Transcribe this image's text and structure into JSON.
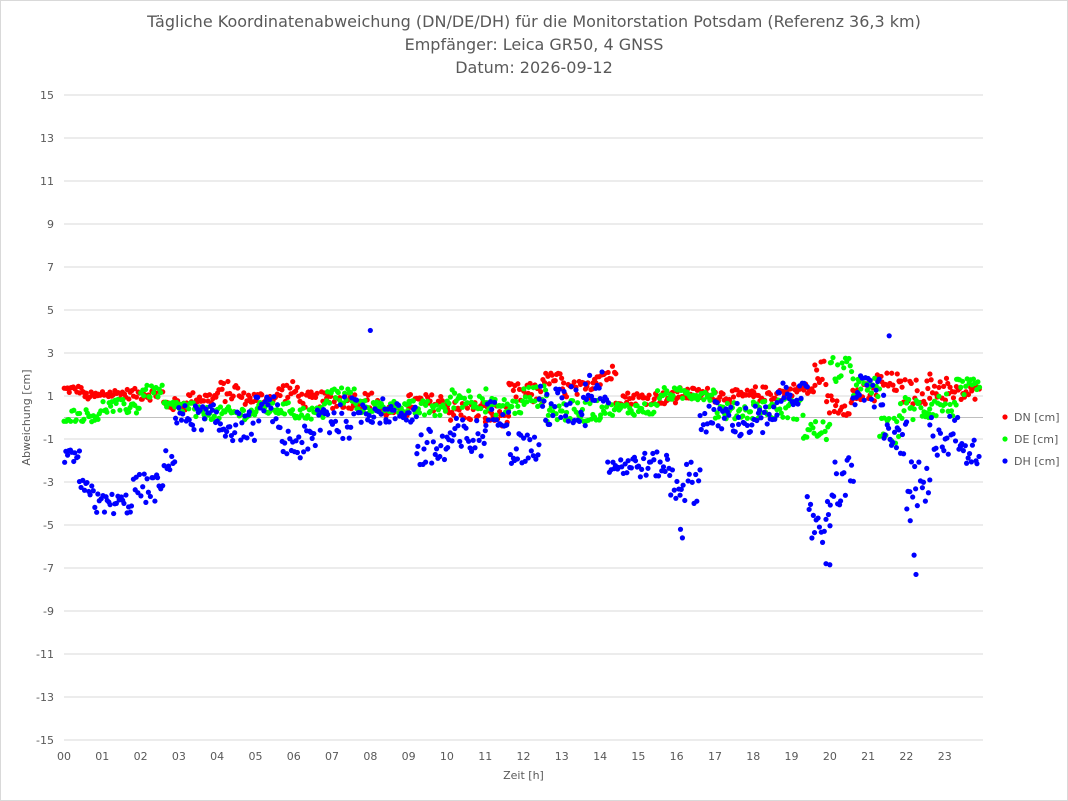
{
  "chart_data": {
    "type": "scatter",
    "title_lines": [
      "Tägliche Koordinatenabweichung (DN/DE/DH) für die Monitorstation Potsdam (Referenz 36,3 km)",
      "Empfänger: Leica GR50, 4 GNSS",
      "Datum: 2026-09-12"
    ],
    "xlabel": "Zeit [h]",
    "ylabel": "Abweichung [cm]",
    "xlim": [
      0,
      24
    ],
    "ylim": [
      -15,
      15
    ],
    "x_tick_labels": [
      "00",
      "01",
      "02",
      "03",
      "04",
      "05",
      "06",
      "07",
      "08",
      "09",
      "10",
      "11",
      "12",
      "13",
      "14",
      "15",
      "16",
      "17",
      "18",
      "19",
      "20",
      "21",
      "22",
      "23"
    ],
    "y_tick_labels": [
      "15",
      "13",
      "11",
      "9",
      "7",
      "5",
      "3",
      "1",
      "-1",
      "-3",
      "-5",
      "-7",
      "-9",
      "-11",
      "-13",
      "-15"
    ],
    "grid": "horizontal",
    "legend_position": "right",
    "series": [
      {
        "name": "DN [cm]",
        "color": "#ff0000",
        "segments": [
          {
            "x0": 0.0,
            "x1": 0.5,
            "base": 1.3,
            "jitter": 0.2
          },
          {
            "x0": 0.5,
            "x1": 1.0,
            "base": 1.0,
            "jitter": 0.2
          },
          {
            "x0": 1.0,
            "x1": 2.0,
            "base": 1.1,
            "jitter": 0.25
          },
          {
            "x0": 2.0,
            "x1": 2.6,
            "base": 1.1,
            "jitter": 0.3
          },
          {
            "x0": 2.6,
            "x1": 3.2,
            "base": 0.6,
            "jitter": 0.3
          },
          {
            "x0": 3.2,
            "x1": 4.0,
            "base": 0.9,
            "jitter": 0.3
          },
          {
            "x0": 4.0,
            "x1": 4.6,
            "base": 1.2,
            "jitter": 0.5
          },
          {
            "x0": 4.6,
            "x1": 5.6,
            "base": 0.9,
            "jitter": 0.3
          },
          {
            "x0": 5.6,
            "x1": 6.2,
            "base": 1.2,
            "jitter": 0.5
          },
          {
            "x0": 6.2,
            "x1": 7.3,
            "base": 0.8,
            "jitter": 0.4
          },
          {
            "x0": 7.3,
            "x1": 8.2,
            "base": 0.8,
            "jitter": 0.4
          },
          {
            "x0": 8.2,
            "x1": 9.0,
            "base": 0.3,
            "jitter": 0.3
          },
          {
            "x0": 9.0,
            "x1": 10.0,
            "base": 0.7,
            "jitter": 0.4
          },
          {
            "x0": 10.0,
            "x1": 11.0,
            "base": 0.3,
            "jitter": 0.5
          },
          {
            "x0": 11.0,
            "x1": 11.6,
            "base": 0.1,
            "jitter": 0.5
          },
          {
            "x0": 11.6,
            "x1": 12.5,
            "base": 1.1,
            "jitter": 0.5
          },
          {
            "x0": 12.5,
            "x1": 13.0,
            "base": 1.8,
            "jitter": 0.3
          },
          {
            "x0": 13.0,
            "x1": 13.8,
            "base": 1.3,
            "jitter": 0.4
          },
          {
            "x0": 13.8,
            "x1": 14.4,
            "base": 2.0,
            "jitter": 0.5
          },
          {
            "x0": 14.4,
            "x1": 16.0,
            "base": 0.9,
            "jitter": 0.3
          },
          {
            "x0": 16.0,
            "x1": 17.0,
            "base": 1.1,
            "jitter": 0.3
          },
          {
            "x0": 17.0,
            "x1": 18.0,
            "base": 1.0,
            "jitter": 0.3
          },
          {
            "x0": 18.0,
            "x1": 19.0,
            "base": 1.1,
            "jitter": 0.35
          },
          {
            "x0": 19.0,
            "x1": 19.6,
            "base": 1.3,
            "jitter": 0.3
          },
          {
            "x0": 19.6,
            "x1": 19.9,
            "base": 2.1,
            "jitter": 0.6
          },
          {
            "x0": 19.9,
            "x1": 20.6,
            "base": 0.6,
            "jitter": 0.5
          },
          {
            "x0": 20.6,
            "x1": 21.2,
            "base": 1.1,
            "jitter": 0.5
          },
          {
            "x0": 21.2,
            "x1": 21.8,
            "base": 1.6,
            "jitter": 0.5
          },
          {
            "x0": 21.8,
            "x1": 22.6,
            "base": 1.2,
            "jitter": 0.6
          },
          {
            "x0": 22.6,
            "x1": 23.1,
            "base": 1.4,
            "jitter": 0.7
          },
          {
            "x0": 23.1,
            "x1": 23.9,
            "base": 1.1,
            "jitter": 0.4
          }
        ]
      },
      {
        "name": "DE [cm]",
        "color": "#00ff00",
        "segments": [
          {
            "x0": 0.0,
            "x1": 1.0,
            "base": 0.1,
            "jitter": 0.3
          },
          {
            "x0": 1.0,
            "x1": 2.0,
            "base": 0.5,
            "jitter": 0.35
          },
          {
            "x0": 2.0,
            "x1": 2.6,
            "base": 1.2,
            "jitter": 0.3
          },
          {
            "x0": 2.6,
            "x1": 3.4,
            "base": 0.5,
            "jitter": 0.3
          },
          {
            "x0": 3.4,
            "x1": 5.0,
            "base": 0.2,
            "jitter": 0.3
          },
          {
            "x0": 5.0,
            "x1": 6.0,
            "base": 0.4,
            "jitter": 0.3
          },
          {
            "x0": 6.0,
            "x1": 6.8,
            "base": 0.2,
            "jitter": 0.3
          },
          {
            "x0": 6.8,
            "x1": 7.6,
            "base": 1.0,
            "jitter": 0.5
          },
          {
            "x0": 7.6,
            "x1": 9.0,
            "base": 0.5,
            "jitter": 0.3
          },
          {
            "x0": 9.0,
            "x1": 10.0,
            "base": 0.4,
            "jitter": 0.4
          },
          {
            "x0": 10.0,
            "x1": 11.0,
            "base": 0.9,
            "jitter": 0.5
          },
          {
            "x0": 11.0,
            "x1": 12.0,
            "base": 0.5,
            "jitter": 0.4
          },
          {
            "x0": 12.0,
            "x1": 12.6,
            "base": 1.0,
            "jitter": 0.5
          },
          {
            "x0": 12.6,
            "x1": 14.0,
            "base": 0.3,
            "jitter": 0.5
          },
          {
            "x0": 14.0,
            "x1": 15.5,
            "base": 0.4,
            "jitter": 0.3
          },
          {
            "x0": 15.5,
            "x1": 17.0,
            "base": 1.1,
            "jitter": 0.3
          },
          {
            "x0": 17.0,
            "x1": 18.0,
            "base": 0.3,
            "jitter": 0.4
          },
          {
            "x0": 18.0,
            "x1": 19.3,
            "base": 0.4,
            "jitter": 0.5
          },
          {
            "x0": 19.3,
            "x1": 20.0,
            "base": -0.6,
            "jitter": 0.5
          },
          {
            "x0": 20.0,
            "x1": 20.6,
            "base": 2.2,
            "jitter": 0.6
          },
          {
            "x0": 20.6,
            "x1": 21.3,
            "base": 1.4,
            "jitter": 0.5
          },
          {
            "x0": 21.3,
            "x1": 21.8,
            "base": -0.6,
            "jitter": 0.6
          },
          {
            "x0": 21.8,
            "x1": 22.6,
            "base": 0.4,
            "jitter": 0.6
          },
          {
            "x0": 22.6,
            "x1": 23.3,
            "base": 0.6,
            "jitter": 0.6
          },
          {
            "x0": 23.3,
            "x1": 23.9,
            "base": 1.3,
            "jitter": 0.5
          }
        ]
      },
      {
        "name": "DH [cm]",
        "color": "#0000ff",
        "segments": [
          {
            "x0": 0.0,
            "x1": 0.4,
            "base": -1.8,
            "jitter": 0.3
          },
          {
            "x0": 0.4,
            "x1": 0.8,
            "base": -3.3,
            "jitter": 0.4
          },
          {
            "x0": 0.8,
            "x1": 1.8,
            "base": -4.0,
            "jitter": 0.5
          },
          {
            "x0": 1.8,
            "x1": 2.6,
            "base": -3.3,
            "jitter": 0.7
          },
          {
            "x0": 2.6,
            "x1": 2.9,
            "base": -2.0,
            "jitter": 0.5
          },
          {
            "x0": 2.9,
            "x1": 4.0,
            "base": 0.0,
            "jitter": 0.6
          },
          {
            "x0": 4.0,
            "x1": 5.0,
            "base": -0.4,
            "jitter": 0.7
          },
          {
            "x0": 5.0,
            "x1": 5.6,
            "base": 0.4,
            "jitter": 0.6
          },
          {
            "x0": 5.6,
            "x1": 6.6,
            "base": -1.2,
            "jitter": 0.8
          },
          {
            "x0": 6.6,
            "x1": 7.6,
            "base": 0.0,
            "jitter": 1.0
          },
          {
            "x0": 7.6,
            "x1": 8.4,
            "base": 0.3,
            "jitter": 0.6
          },
          {
            "x0": 8.4,
            "x1": 9.2,
            "base": 0.2,
            "jitter": 0.5
          },
          {
            "x0": 9.2,
            "x1": 10.0,
            "base": -1.5,
            "jitter": 1.0
          },
          {
            "x0": 10.0,
            "x1": 11.0,
            "base": -1.0,
            "jitter": 1.0
          },
          {
            "x0": 11.0,
            "x1": 11.6,
            "base": 0.2,
            "jitter": 0.6
          },
          {
            "x0": 11.6,
            "x1": 12.4,
            "base": -1.4,
            "jitter": 0.8
          },
          {
            "x0": 12.4,
            "x1": 13.6,
            "base": 0.5,
            "jitter": 1.0
          },
          {
            "x0": 13.6,
            "x1": 14.2,
            "base": 1.4,
            "jitter": 0.8
          },
          {
            "x0": 14.2,
            "x1": 15.8,
            "base": -2.2,
            "jitter": 0.6
          },
          {
            "x0": 15.8,
            "x1": 16.6,
            "base": -3.0,
            "jitter": 1.0
          },
          {
            "x0": 16.6,
            "x1": 17.6,
            "base": 0.0,
            "jitter": 0.8
          },
          {
            "x0": 17.6,
            "x1": 18.6,
            "base": -0.2,
            "jitter": 0.8
          },
          {
            "x0": 18.6,
            "x1": 19.4,
            "base": 1.1,
            "jitter": 0.5
          },
          {
            "x0": 19.4,
            "x1": 20.0,
            "base": -4.8,
            "jitter": 1.2
          },
          {
            "x0": 20.0,
            "x1": 20.6,
            "base": -3.0,
            "jitter": 1.2
          },
          {
            "x0": 20.6,
            "x1": 21.4,
            "base": 1.2,
            "jitter": 0.8
          },
          {
            "x0": 21.4,
            "x1": 22.0,
            "base": -1.0,
            "jitter": 0.8
          },
          {
            "x0": 22.0,
            "x1": 22.6,
            "base": -3.5,
            "jitter": 1.5
          },
          {
            "x0": 22.6,
            "x1": 23.4,
            "base": -0.8,
            "jitter": 1.0
          },
          {
            "x0": 23.4,
            "x1": 23.9,
            "base": -1.6,
            "jitter": 0.6
          }
        ],
        "outliers": [
          {
            "x": 8.0,
            "y": 4.05
          },
          {
            "x": 16.1,
            "y": -5.2
          },
          {
            "x": 16.15,
            "y": -5.6
          },
          {
            "x": 19.9,
            "y": -6.8
          },
          {
            "x": 20.0,
            "y": -6.85
          },
          {
            "x": 21.55,
            "y": 3.8
          },
          {
            "x": 22.1,
            "y": -4.8
          },
          {
            "x": 22.2,
            "y": -6.4
          },
          {
            "x": 22.25,
            "y": -7.3
          }
        ]
      }
    ]
  }
}
